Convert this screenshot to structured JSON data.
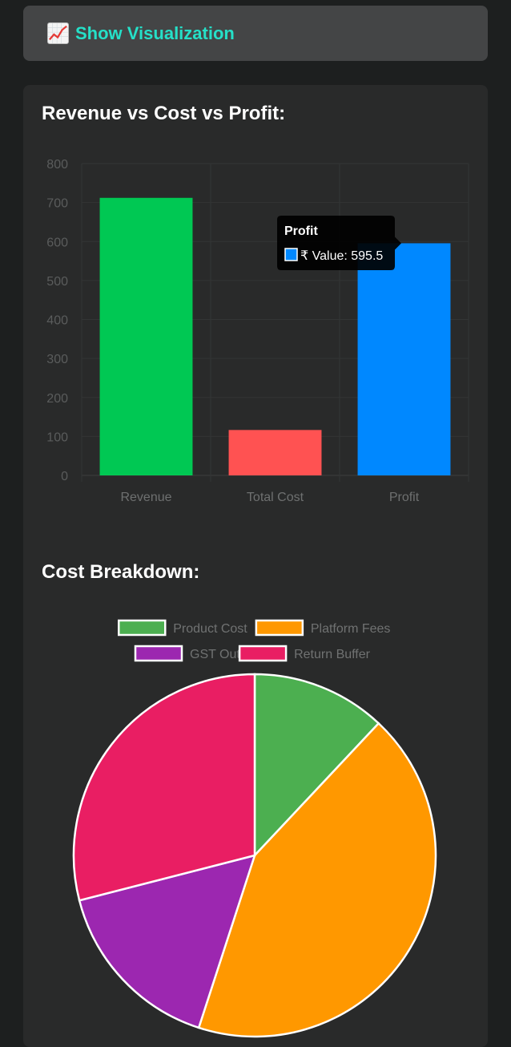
{
  "toggle": {
    "label": "Show Visualization",
    "icon": "chart-increasing-icon"
  },
  "charts": {
    "bar_heading": "Revenue vs Cost vs Profit:",
    "pie_heading": "Cost Breakdown:"
  },
  "chart_data": [
    {
      "type": "bar",
      "title": "Revenue vs Cost vs Profit:",
      "categories": [
        "Revenue",
        "Total Cost",
        "Profit"
      ],
      "values": [
        712,
        116.5,
        595.5
      ],
      "colors": [
        "#00c853",
        "#ff5252",
        "#0088ff"
      ],
      "ylim": [
        0,
        800
      ],
      "yticks": [
        0,
        100,
        200,
        300,
        400,
        500,
        600,
        700,
        800
      ],
      "grid": true,
      "tooltip": {
        "title": "Profit",
        "label": "₹ Value: 595.5",
        "color": "#0088ff"
      }
    },
    {
      "type": "pie",
      "title": "Cost Breakdown:",
      "labels": [
        "Product Cost",
        "Platform Fees",
        "GST Out",
        "Return Buffer"
      ],
      "values": [
        12,
        43,
        16,
        29
      ],
      "colors": [
        "#4caf50",
        "#ff9800",
        "#9c27b0",
        "#e91e63"
      ],
      "legend": "top"
    }
  ]
}
